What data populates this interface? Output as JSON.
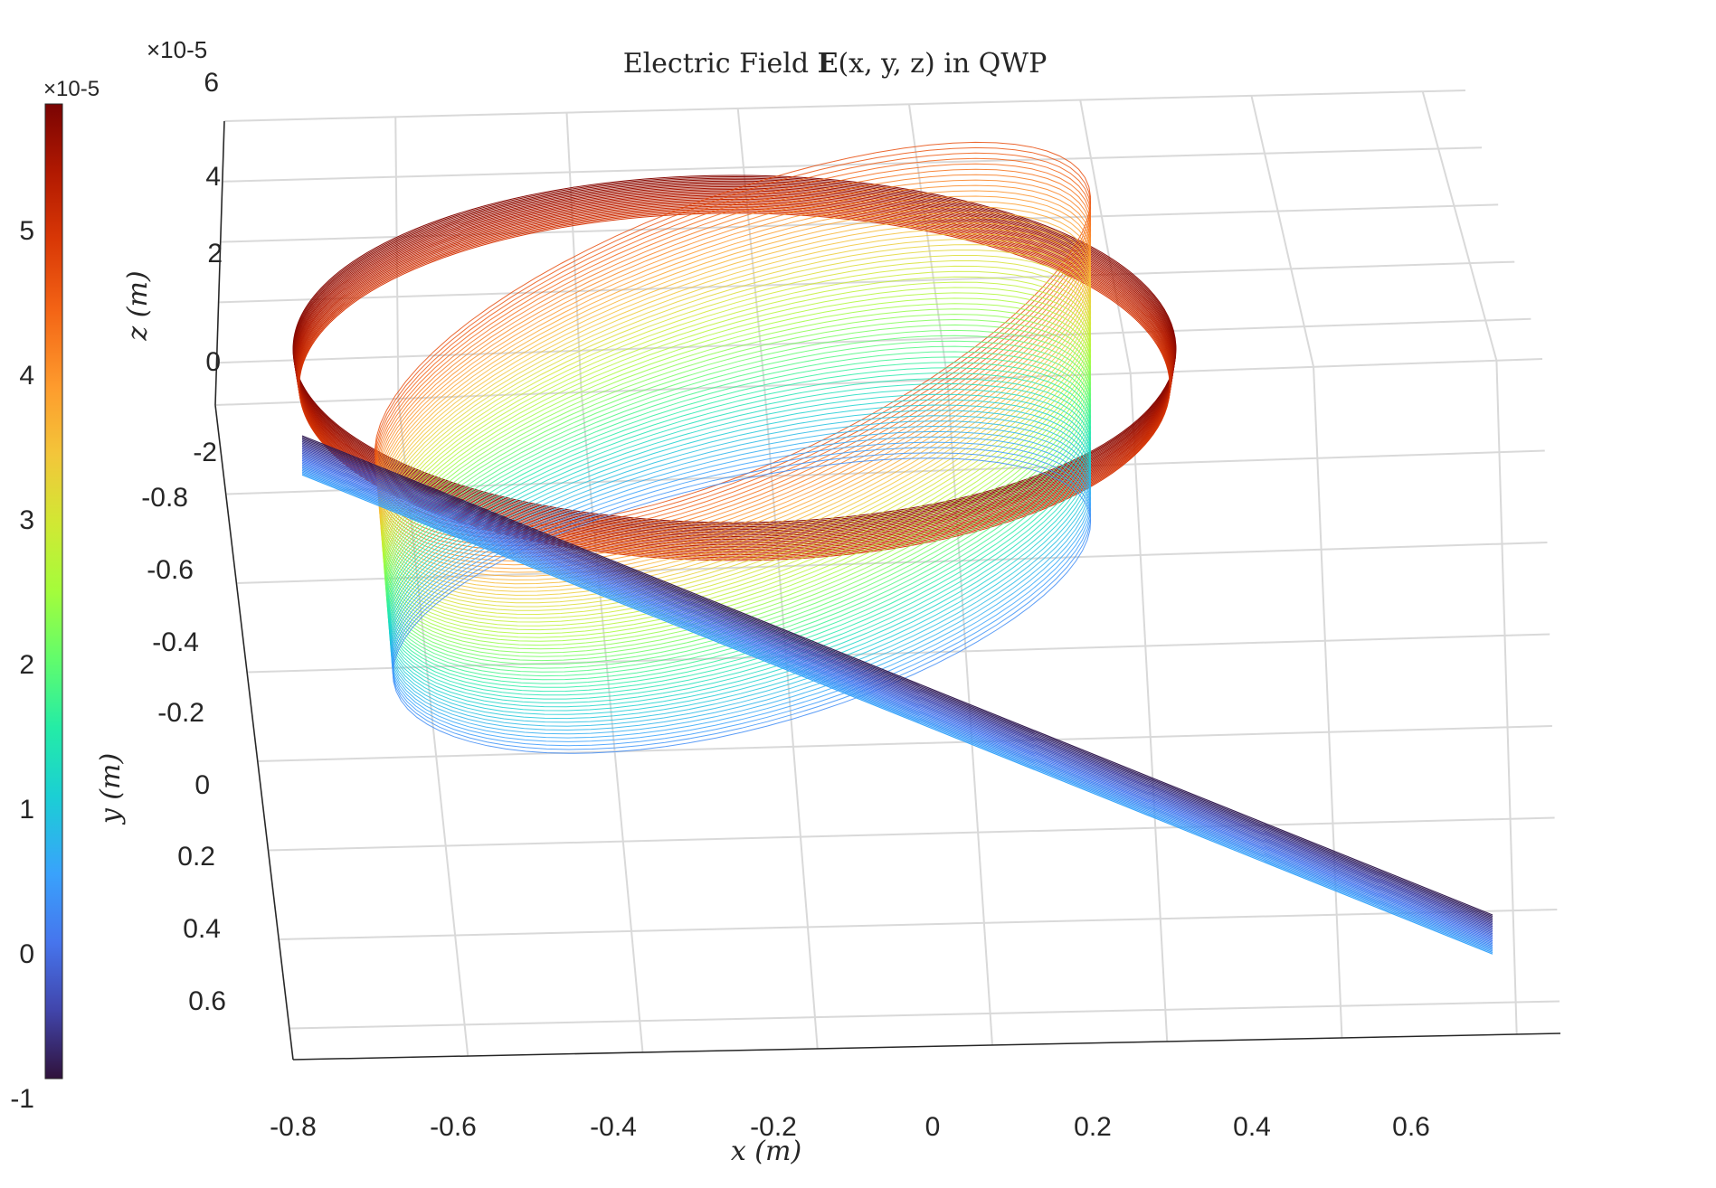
{
  "chart_data": {
    "type": "line",
    "subtype": "3d-line-bundle",
    "title": "Electric Field E(x, y, z) in QWP",
    "title_parts": {
      "pre": "Electric Field ",
      "bold": "E",
      "post": "(x, y, z) in QWP"
    },
    "xlabel": "x (m)",
    "ylabel": "y (m)",
    "zlabel": "z (m)",
    "x_ticks": [
      "-0.8",
      "-0.6",
      "-0.4",
      "-0.2",
      "0",
      "0.2",
      "0.4",
      "0.6"
    ],
    "y_ticks": [
      "-0.8",
      "-0.6",
      "-0.4",
      "-0.2",
      "0",
      "0.2",
      "0.4",
      "0.6"
    ],
    "z_ticks": [
      "6",
      "4",
      "2",
      "0",
      "-2"
    ],
    "z_exponent": "×10-5",
    "xlim": [
      -0.8,
      0.8
    ],
    "ylim": [
      -0.85,
      0.75
    ],
    "zlim": [
      -3e-05,
      6e-05
    ],
    "grid": true,
    "colormap": "turbo",
    "colorbar": {
      "position": "left",
      "exponent": "×10-5",
      "ticks": [
        "5",
        "4",
        "3",
        "2",
        "1",
        "0",
        "-1"
      ],
      "range": [
        -1e-05,
        5.8e-05
      ]
    },
    "series": [
      {
        "curve": "linear",
        "z_level": -1e-05,
        "x_extent": [
          -0.8,
          0.7
        ]
      },
      {
        "curve": "elliptical",
        "z_level": 2.5e-05,
        "x_extent": [
          -0.6,
          0.55
        ]
      },
      {
        "curve": "circular",
        "z_level": 5.8e-05,
        "x_extent": [
          -0.72,
          0.62
        ]
      }
    ]
  },
  "colors": {
    "grid": "#d9d9d9",
    "axis": "#262626",
    "text": "#262626"
  }
}
